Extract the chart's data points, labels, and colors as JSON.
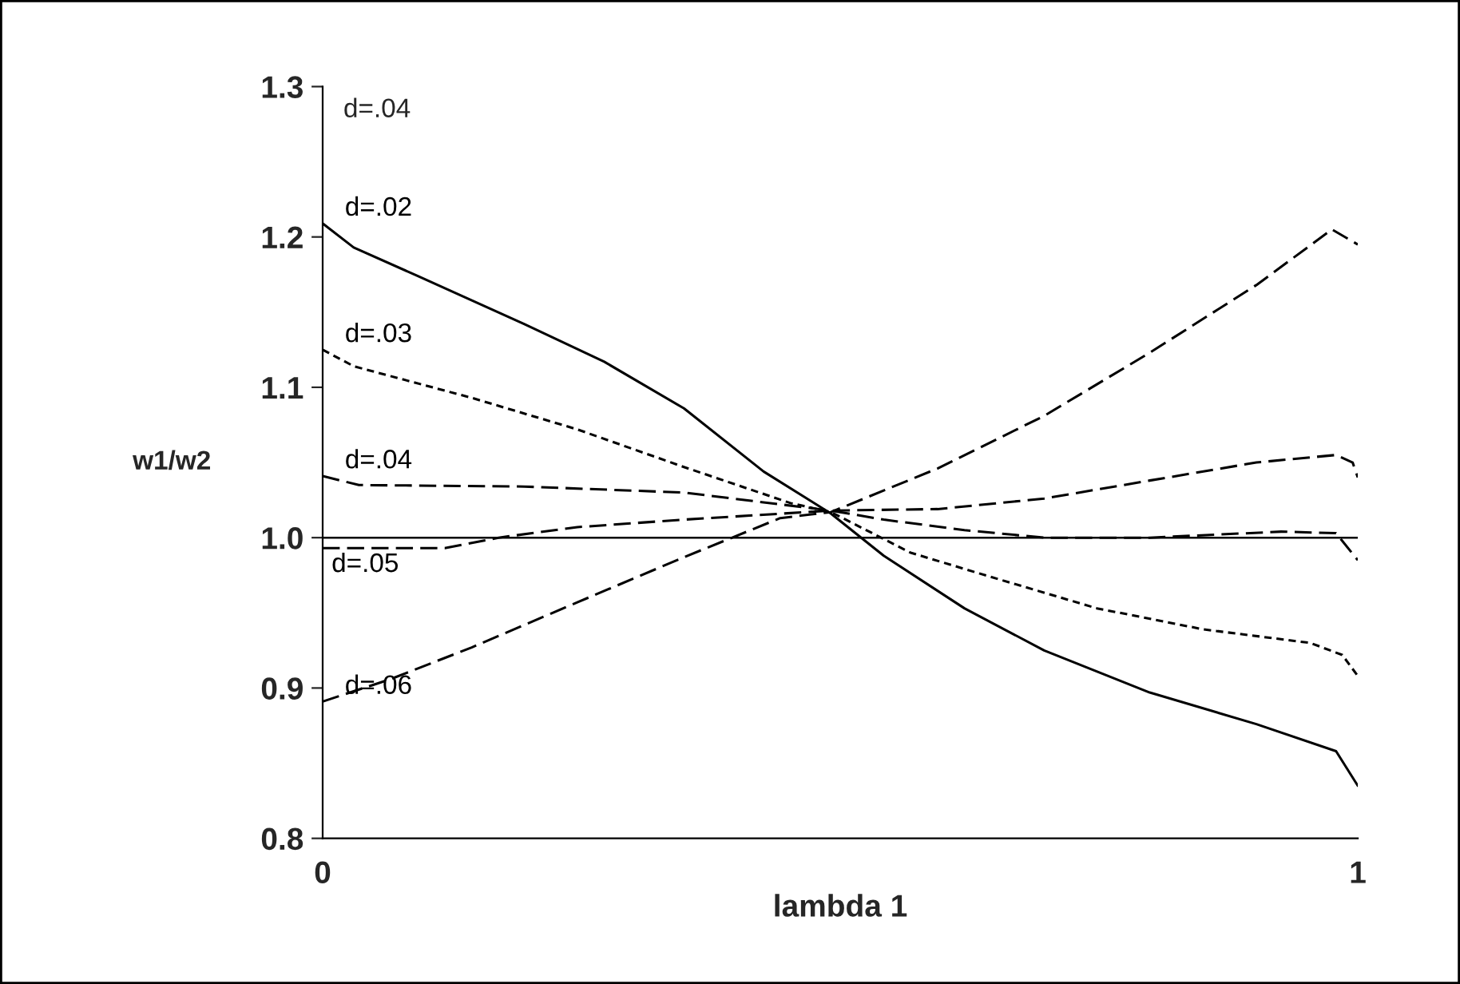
{
  "chart_data": {
    "type": "line",
    "xlabel": "lambda 1",
    "ylabel": "w1/w2",
    "xlim": [
      0,
      1
    ],
    "xticks": [
      0,
      1
    ],
    "ylim": [
      0.8,
      1.3
    ],
    "yticks": [
      {
        "value": 0.8,
        "label": "0.8"
      },
      {
        "value": 0.9,
        "label": "0.9"
      },
      {
        "value": 1.0,
        "label": "1.0"
      },
      {
        "value": 1.1,
        "label": "1.1"
      },
      {
        "value": 1.2,
        "label": "1.2"
      },
      {
        "value": 1.3,
        "label": "1.3"
      }
    ],
    "grid": false,
    "legend": false,
    "marker": "none",
    "ref_lines": [
      {
        "axis": "y",
        "value": 1.0,
        "color": "#000000",
        "line_style": "solid"
      }
    ],
    "annotations": [
      "d=.04"
    ],
    "series": [
      {
        "name": "d=.02",
        "color": "#000000",
        "line_style": "solid",
        "x": [
          0,
          0.03,
          0.092,
          0.195,
          0.272,
          0.349,
          0.426,
          0.491,
          0.542,
          0.62,
          0.697,
          0.799,
          0.902,
          0.979,
          1.0
        ],
        "values": [
          1.209,
          1.193,
          1.174,
          1.142,
          1.117,
          1.086,
          1.044,
          1.016,
          0.988,
          0.953,
          0.925,
          0.897,
          0.876,
          0.858,
          0.835
        ]
      },
      {
        "name": "d=.03",
        "color": "#000000",
        "line_style": "dotted",
        "x": [
          0,
          0.03,
          0.144,
          0.246,
          0.349,
          0.452,
          0.491,
          0.568,
          0.645,
          0.748,
          0.851,
          0.954,
          0.985,
          1.0
        ],
        "values": [
          1.125,
          1.114,
          1.093,
          1.072,
          1.047,
          1.023,
          1.017,
          0.99,
          0.974,
          0.953,
          0.939,
          0.93,
          0.922,
          0.908
        ]
      },
      {
        "name": "d=.04",
        "color": "#000000",
        "line_style": "dashed",
        "x": [
          0,
          0.035,
          0.195,
          0.349,
          0.491,
          0.594,
          0.697,
          0.799,
          0.902,
          0.979,
          0.995,
          1.0
        ],
        "values": [
          1.041,
          1.035,
          1.034,
          1.03,
          1.018,
          1.019,
          1.026,
          1.038,
          1.05,
          1.055,
          1.05,
          1.04
        ]
      },
      {
        "name": "d=.05",
        "color": "#000000",
        "line_style": "dashed",
        "x": [
          0,
          0.118,
          0.17,
          0.246,
          0.349,
          0.491,
          0.542,
          0.62,
          0.697,
          0.799,
          0.926,
          0.979,
          1.0
        ],
        "values": [
          0.993,
          0.993,
          1.0,
          1.007,
          1.012,
          1.018,
          1.012,
          1.005,
          1.0,
          1.0,
          1.004,
          1.003,
          0.985
        ]
      },
      {
        "name": "d=.06",
        "color": "#000000",
        "line_style": "dashed",
        "x": [
          0,
          0.066,
          0.144,
          0.246,
          0.349,
          0.442,
          0.491,
          0.594,
          0.697,
          0.799,
          0.902,
          0.975,
          1.0
        ],
        "values": [
          0.891,
          0.906,
          0.927,
          0.957,
          0.987,
          1.013,
          1.017,
          1.046,
          1.081,
          1.123,
          1.168,
          1.205,
          1.195
        ]
      }
    ]
  }
}
